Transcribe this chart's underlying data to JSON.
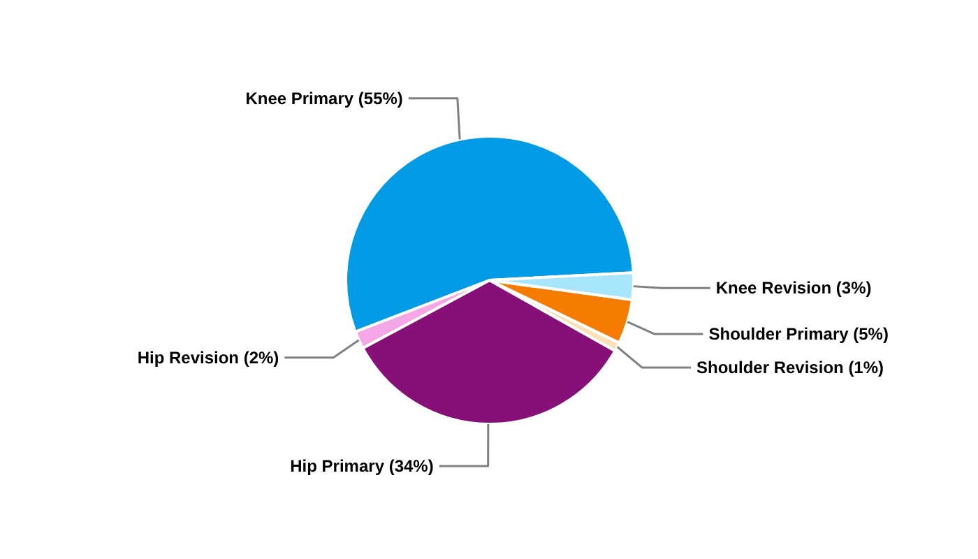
{
  "chart_data": {
    "type": "pie",
    "categories": [
      "Knee Primary",
      "Hip Revision",
      "Hip Primary",
      "Shoulder Revision",
      "Shoulder Primary",
      "Knee Revision"
    ],
    "values": [
      55,
      2,
      34,
      1,
      5,
      3
    ],
    "value_labels": [
      "(55%)",
      "(2%)",
      "(34%)",
      "(1%)",
      "(5%)",
      "(3%)"
    ],
    "colors": [
      "#039be5",
      "#f4a6e6",
      "#861078",
      "#fbe0b8",
      "#f57c00",
      "#a6e5fb"
    ]
  }
}
